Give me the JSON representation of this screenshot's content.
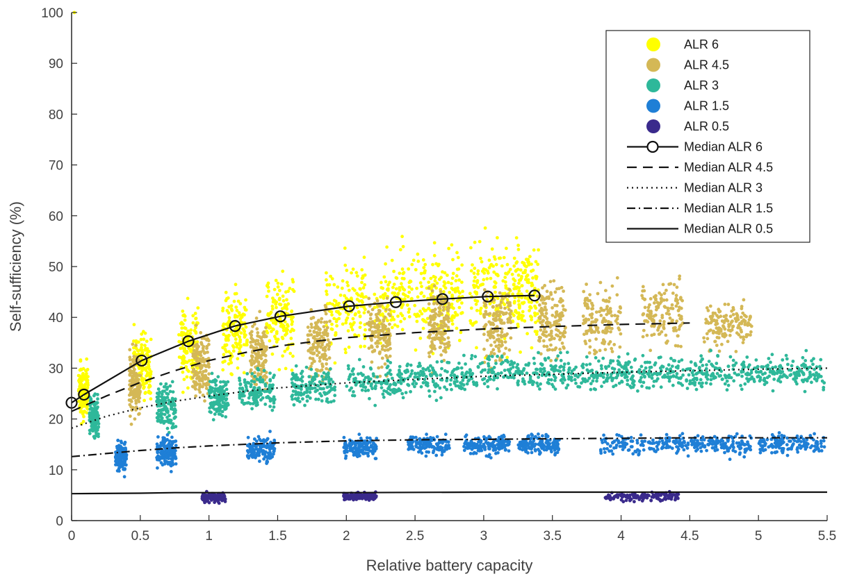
{
  "chart_data": {
    "type": "scatter",
    "xlabel": "Relative battery capacity",
    "ylabel": "Self-sufficiency (%)",
    "xlim": [
      0,
      5.5
    ],
    "ylim": [
      0,
      100
    ],
    "x_ticks": [
      "0",
      "0.5",
      "1",
      "1.5",
      "2",
      "2.5",
      "3",
      "3.5",
      "4",
      "4.5",
      "5",
      "5.5"
    ],
    "y_ticks": [
      "0",
      "10",
      "20",
      "30",
      "40",
      "50",
      "60",
      "70",
      "80",
      "90",
      "100"
    ],
    "x_tick_values": [
      0,
      0.5,
      1,
      1.5,
      2,
      2.5,
      3,
      3.5,
      4,
      4.5,
      5,
      5.5
    ],
    "y_tick_values": [
      0,
      10,
      20,
      30,
      40,
      50,
      60,
      70,
      80,
      90,
      100
    ],
    "grid": false,
    "legend_position": "top-right",
    "scatter_series": [
      {
        "name": "ALR 6",
        "color": "#FFFF00",
        "clusters": [
          {
            "x": [
              0.05,
              0.12
            ],
            "y": [
              15,
              35
            ]
          },
          {
            "x": [
              0.45,
              0.58
            ],
            "y": [
              20,
              42
            ]
          },
          {
            "x": [
              0.78,
              0.92
            ],
            "y": [
              23,
              46
            ]
          },
          {
            "x": [
              1.1,
              1.28
            ],
            "y": [
              25,
              50
            ]
          },
          {
            "x": [
              1.42,
              1.62
            ],
            "y": [
              27,
              53
            ]
          },
          {
            "x": [
              1.85,
              2.15
            ],
            "y": [
              28,
              56
            ]
          },
          {
            "x": [
              2.2,
              2.55
            ],
            "y": [
              29,
              58
            ]
          },
          {
            "x": [
              2.55,
              2.85
            ],
            "y": [
              30,
              59
            ]
          },
          {
            "x": [
              2.9,
              3.2
            ],
            "y": [
              30,
              60
            ]
          },
          {
            "x": [
              3.2,
              3.4
            ],
            "y": [
              31,
              60
            ]
          }
        ]
      },
      {
        "name": "ALR 4.5",
        "color": "#D4B856",
        "clusters": [
          {
            "x": [
              0.42,
              0.5
            ],
            "y": [
              18,
              36
            ]
          },
          {
            "x": [
              0.88,
              1.0
            ],
            "y": [
              20,
              40
            ]
          },
          {
            "x": [
              1.3,
              1.42
            ],
            "y": [
              22,
              43
            ]
          },
          {
            "x": [
              1.72,
              1.88
            ],
            "y": [
              24,
              46
            ]
          },
          {
            "x": [
              2.15,
              2.32
            ],
            "y": [
              26,
              48
            ]
          },
          {
            "x": [
              2.6,
              2.75
            ],
            "y": [
              27,
              49
            ]
          },
          {
            "x": [
              3.0,
              3.2
            ],
            "y": [
              28,
              50
            ]
          },
          {
            "x": [
              3.4,
              3.6
            ],
            "y": [
              29,
              50
            ]
          },
          {
            "x": [
              3.72,
              4.0
            ],
            "y": [
              30,
              50
            ]
          },
          {
            "x": [
              4.15,
              4.45
            ],
            "y": [
              30,
              50
            ]
          },
          {
            "x": [
              4.6,
              4.95
            ],
            "y": [
              31,
              46
            ]
          }
        ]
      },
      {
        "name": "ALR 3",
        "color": "#2EB89A",
        "clusters": [
          {
            "x": [
              0.13,
              0.2
            ],
            "y": [
              14,
              27
            ]
          },
          {
            "x": [
              0.62,
              0.76
            ],
            "y": [
              16,
              29
            ]
          },
          {
            "x": [
              1.0,
              1.14
            ],
            "y": [
              18,
              30
            ]
          },
          {
            "x": [
              1.22,
              1.48
            ],
            "y": [
              20,
              31
            ]
          },
          {
            "x": [
              1.6,
              1.92
            ],
            "y": [
              21,
              32
            ]
          },
          {
            "x": [
              2.0,
              2.45
            ],
            "y": [
              22,
              33
            ]
          },
          {
            "x": [
              2.45,
              2.95
            ],
            "y": [
              23,
              34
            ]
          },
          {
            "x": [
              2.95,
              3.5
            ],
            "y": [
              24,
              34
            ]
          },
          {
            "x": [
              3.5,
              4.0
            ],
            "y": [
              24,
              34
            ]
          },
          {
            "x": [
              4.0,
              4.5
            ],
            "y": [
              24,
              34
            ]
          },
          {
            "x": [
              4.5,
              5.0
            ],
            "y": [
              24,
              34
            ]
          },
          {
            "x": [
              5.0,
              5.48
            ],
            "y": [
              24,
              34
            ]
          }
        ]
      },
      {
        "name": "ALR 1.5",
        "color": "#1F7FD6",
        "clusters": [
          {
            "x": [
              0.32,
              0.4
            ],
            "y": [
              8,
              17
            ]
          },
          {
            "x": [
              0.62,
              0.76
            ],
            "y": [
              9,
              18
            ]
          },
          {
            "x": [
              1.28,
              1.48
            ],
            "y": [
              10,
              18
            ]
          },
          {
            "x": [
              1.98,
              2.22
            ],
            "y": [
              11,
              18
            ]
          },
          {
            "x": [
              2.45,
              2.75
            ],
            "y": [
              12,
              18
            ]
          },
          {
            "x": [
              2.85,
              3.2
            ],
            "y": [
              12,
              18
            ]
          },
          {
            "x": [
              3.25,
              3.55
            ],
            "y": [
              12,
              18
            ]
          },
          {
            "x": [
              3.85,
              4.45
            ],
            "y": [
              12,
              18
            ]
          },
          {
            "x": [
              4.45,
              4.95
            ],
            "y": [
              12,
              18
            ]
          },
          {
            "x": [
              5.0,
              5.48
            ],
            "y": [
              12,
              18
            ]
          }
        ]
      },
      {
        "name": "ALR 0.5",
        "color": "#3A2A8C",
        "clusters": [
          {
            "x": [
              0.95,
              1.12
            ],
            "y": [
              3,
              6
            ]
          },
          {
            "x": [
              1.98,
              2.22
            ],
            "y": [
              3.5,
              6
            ]
          },
          {
            "x": [
              3.88,
              4.42
            ],
            "y": [
              3.5,
              6
            ]
          }
        ]
      }
    ],
    "median_series": [
      {
        "name": "Median ALR 6",
        "style": "solid-circles",
        "x": [
          0,
          0.09,
          0.51,
          0.85,
          1.19,
          1.52,
          2.02,
          2.36,
          2.7,
          3.03,
          3.37
        ],
        "y": [
          23.2,
          24.8,
          31.5,
          35.3,
          38.3,
          40.2,
          42.2,
          43.0,
          43.6,
          44.1,
          44.3
        ]
      },
      {
        "name": "Median ALR 4.5",
        "style": "dashed",
        "x": [
          0,
          0.25,
          0.5,
          0.75,
          1.0,
          1.25,
          1.5,
          1.75,
          2.0,
          2.5,
          3.0,
          3.5,
          4.0,
          4.5
        ],
        "y": [
          21.5,
          24.5,
          27.2,
          29.5,
          31.5,
          33.0,
          34.3,
          35.2,
          36.0,
          37.0,
          37.7,
          38.2,
          38.6,
          38.9
        ]
      },
      {
        "name": "Median ALR 3",
        "style": "dotted",
        "x": [
          0,
          0.25,
          0.5,
          0.75,
          1.0,
          1.25,
          1.5,
          2.0,
          2.5,
          3.0,
          3.5,
          4.0,
          4.5,
          5.0,
          5.5
        ],
        "y": [
          18.2,
          20.5,
          22.2,
          23.5,
          24.5,
          25.4,
          26.1,
          27.1,
          27.8,
          28.4,
          28.8,
          29.2,
          29.5,
          29.8,
          30.0
        ]
      },
      {
        "name": "Median ALR 1.5",
        "style": "dashdot",
        "x": [
          0,
          0.25,
          0.5,
          0.75,
          1.0,
          1.25,
          1.5,
          2.0,
          2.5,
          3.0,
          3.5,
          4.0,
          4.5,
          5.0,
          5.5
        ],
        "y": [
          12.6,
          13.2,
          13.8,
          14.3,
          14.7,
          15.0,
          15.3,
          15.7,
          15.9,
          16.0,
          16.1,
          16.2,
          16.3,
          16.3,
          16.3
        ]
      },
      {
        "name": "Median ALR 0.5",
        "style": "solid",
        "x": [
          0,
          0.5,
          0.75,
          1.0,
          2.0,
          3.0,
          4.0,
          5.0,
          5.5
        ],
        "y": [
          5.3,
          5.4,
          5.5,
          5.5,
          5.5,
          5.6,
          5.6,
          5.6,
          5.6
        ]
      }
    ],
    "outliers": [
      {
        "x": 0.02,
        "y": 100,
        "color": "#FFFF00"
      }
    ]
  }
}
